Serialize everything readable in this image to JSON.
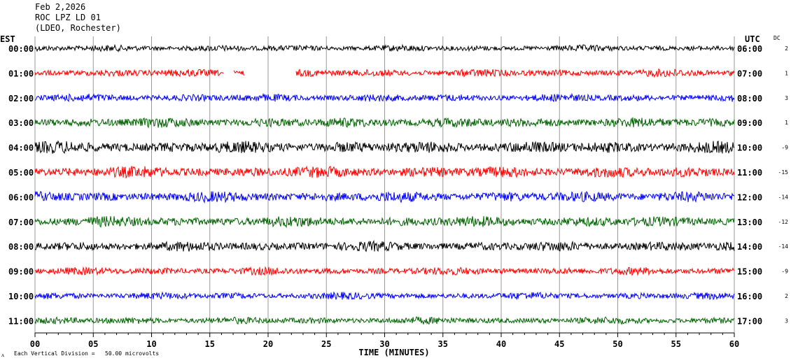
{
  "header": {
    "date": "Feb 2,2026",
    "station": "ROC LPZ LD 01",
    "network": "(LDEO, Rochester)"
  },
  "left_axis_title": "EST",
  "right_axis_title": "UTC",
  "dc_title": "DC",
  "footer": {
    "scale_note": "Each Vertical Division =   50.00 microvolts",
    "mark": "ᴧ"
  },
  "chart_data": {
    "type": "line",
    "xlabel": "TIME (MINUTES)",
    "xlim": [
      0,
      60
    ],
    "x_ticks": [
      "00",
      "05",
      "10",
      "15",
      "20",
      "25",
      "30",
      "35",
      "40",
      "45",
      "50",
      "55",
      "60"
    ],
    "trace_colors": [
      "#000000",
      "#ff0000",
      "#0000ff",
      "#006400"
    ],
    "rows": [
      {
        "est": "00:00",
        "utc": "06:00",
        "dc": "2",
        "amp": 0.45,
        "gaps": []
      },
      {
        "est": "01:00",
        "utc": "07:00",
        "dc": "1",
        "amp": 0.55,
        "gaps": [
          [
            16.2,
            17.0
          ],
          [
            18.0,
            22.4
          ]
        ]
      },
      {
        "est": "02:00",
        "utc": "08:00",
        "dc": "3",
        "amp": 0.55,
        "gaps": []
      },
      {
        "est": "03:00",
        "utc": "09:00",
        "dc": "1",
        "amp": 0.7,
        "gaps": []
      },
      {
        "est": "04:00",
        "utc": "10:00",
        "dc": "-9",
        "amp": 0.85,
        "gaps": []
      },
      {
        "est": "05:00",
        "utc": "11:00",
        "dc": "-15",
        "amp": 0.8,
        "gaps": []
      },
      {
        "est": "06:00",
        "utc": "12:00",
        "dc": "-14",
        "amp": 0.75,
        "gaps": []
      },
      {
        "est": "07:00",
        "utc": "13:00",
        "dc": "-12",
        "amp": 0.75,
        "gaps": []
      },
      {
        "est": "08:00",
        "utc": "14:00",
        "dc": "-14",
        "amp": 0.7,
        "gaps": []
      },
      {
        "est": "09:00",
        "utc": "15:00",
        "dc": "-9",
        "amp": 0.55,
        "gaps": []
      },
      {
        "est": "10:00",
        "utc": "16:00",
        "dc": "2",
        "amp": 0.5,
        "gaps": []
      },
      {
        "est": "11:00",
        "utc": "17:00",
        "dc": "3",
        "amp": 0.5,
        "gaps": []
      }
    ]
  }
}
